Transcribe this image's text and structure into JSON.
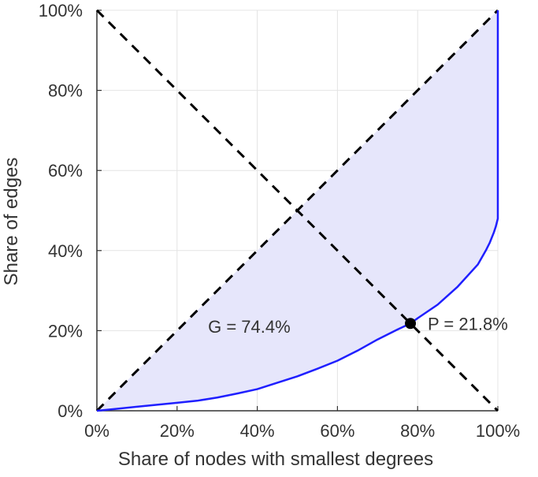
{
  "chart_data": {
    "type": "line",
    "title": "",
    "xlabel": "Share of nodes with smallest degrees",
    "ylabel": "Share of edges",
    "xlim": [
      0,
      100
    ],
    "ylim": [
      0,
      100
    ],
    "x_ticks": [
      "0%",
      "20%",
      "40%",
      "60%",
      "80%",
      "100%"
    ],
    "y_ticks": [
      "0%",
      "20%",
      "40%",
      "60%",
      "80%",
      "100%"
    ],
    "grid": true,
    "series": [
      {
        "color": "#1f1fff",
        "fill_color": "#e6e6fb",
        "x": [
          0,
          5,
          10,
          15,
          20,
          25,
          30,
          35,
          40,
          45,
          50,
          55,
          60,
          65,
          70,
          75,
          78.2,
          80,
          85,
          90,
          95,
          97,
          98,
          99,
          99.5,
          100,
          100
        ],
        "y": [
          0,
          0.5,
          1.0,
          1.5,
          2.0,
          2.5,
          3.3,
          4.3,
          5.4,
          7.0,
          8.6,
          10.5,
          12.5,
          15.0,
          17.8,
          20.3,
          21.8,
          23.1,
          26.5,
          31.0,
          36.5,
          40.0,
          42.0,
          44.5,
          46.0,
          48.0,
          100
        ]
      }
    ],
    "reference_lines": [
      {
        "x": [
          0,
          100
        ],
        "y": [
          0,
          100
        ],
        "style": "dashed",
        "color": "#000000"
      },
      {
        "x": [
          0,
          100
        ],
        "y": [
          100,
          0
        ],
        "style": "dashed",
        "color": "#000000"
      }
    ],
    "shaded_region": "between equality diagonal and curve",
    "annotations": [
      {
        "text": "G = 74.4%",
        "x": 38,
        "y": 19.5
      },
      {
        "text": "P = 21.8%",
        "x": 78.2,
        "y": 21.8,
        "marker": true
      }
    ]
  }
}
